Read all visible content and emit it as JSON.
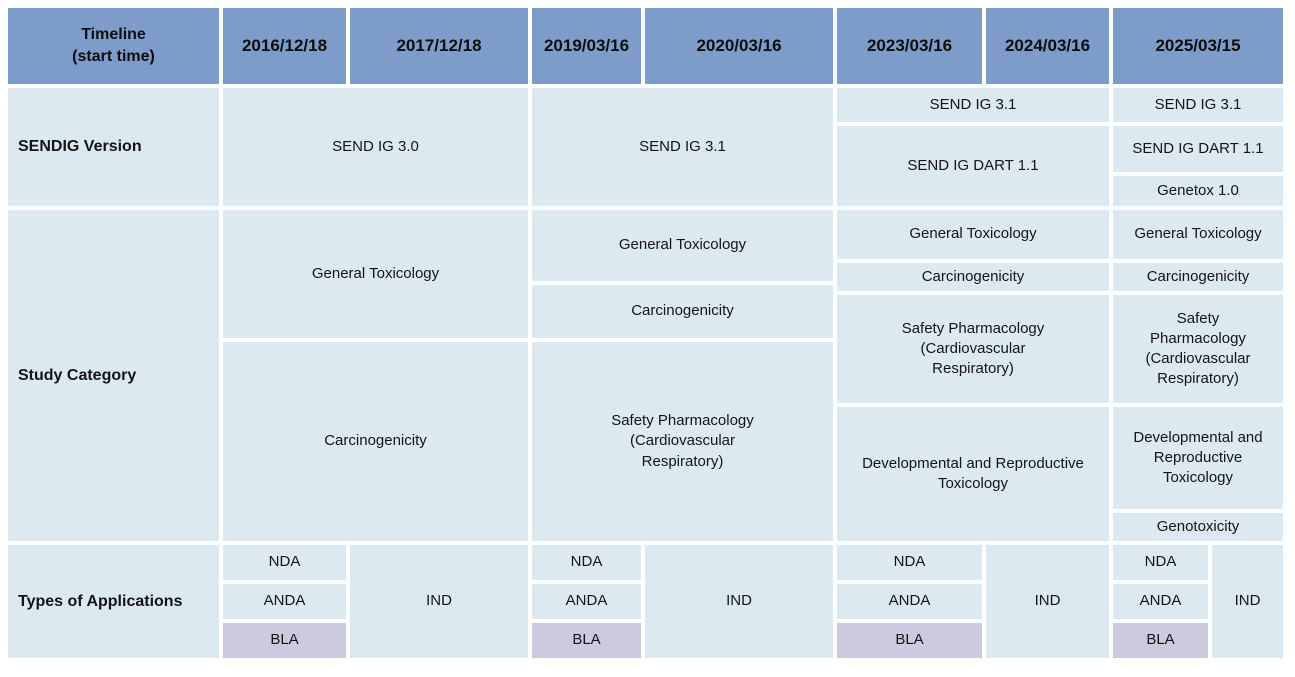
{
  "colors": {
    "header_bg": "#7d9cca",
    "cell_bg": "#dce9f1",
    "bla_bg": "#cbcade",
    "grid_line": "#ffffff",
    "text": "#141414"
  },
  "header": {
    "timeline_label": "Timeline\n(start time)",
    "dates": [
      "2016/12/18",
      "2017/12/18",
      "2019/03/16",
      "2020/03/16",
      "2023/03/16",
      "2024/03/16",
      "2025/03/15"
    ]
  },
  "sendig": {
    "label": "SENDIG Version",
    "v2016_17": "SEND IG 3.0",
    "v2019_20": "SEND IG 3.1",
    "v2023_24_top": "SEND IG 3.1",
    "v2023_24_bottom": "SEND IG DART 1.1",
    "v2025_top": "SEND IG 3.1",
    "v2025_mid": "SEND IG DART 1.1",
    "v2025_bottom": "Genetox 1.0"
  },
  "study": {
    "label": "Study Category",
    "c2016_17": [
      "General Toxicology",
      "Carcinogenicity"
    ],
    "c2019_20": [
      "General Toxicology",
      "Carcinogenicity",
      "Safety Pharmacology\n(Cardiovascular\nRespiratory)"
    ],
    "c2023_24": [
      "General Toxicology",
      "Carcinogenicity",
      "Safety Pharmacology\n(Cardiovascular\nRespiratory)",
      "Developmental and Reproductive\nToxicology"
    ],
    "c2025": [
      "General Toxicology",
      "Carcinogenicity",
      "Safety\nPharmacology\n(Cardiovascular\nRespiratory)",
      "Developmental and\nReproductive\nToxicology",
      "Genotoxicity"
    ]
  },
  "apps": {
    "label": "Types of Applications",
    "nda": "NDA",
    "anda": "ANDA",
    "bla": "BLA",
    "ind": "IND"
  }
}
